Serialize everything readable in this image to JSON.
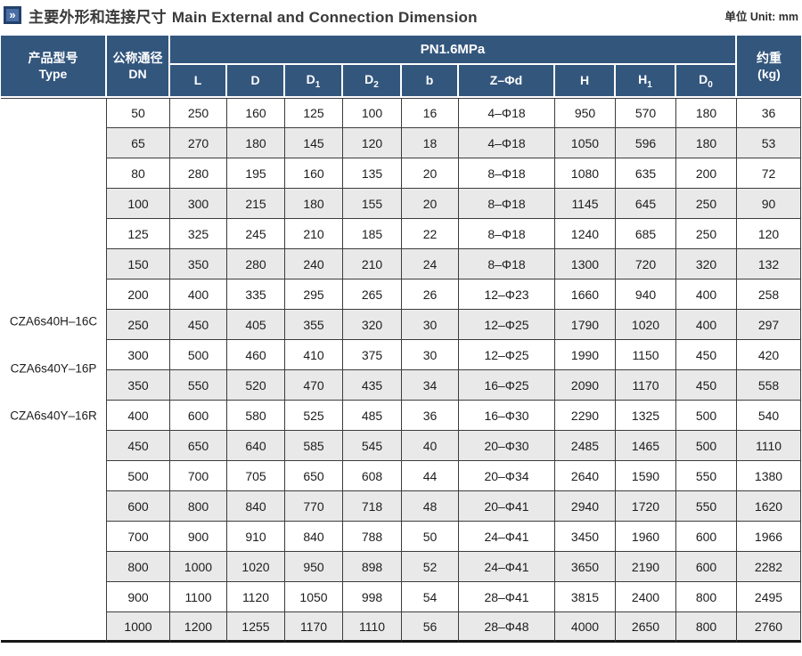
{
  "header": {
    "title_zh": "主要外形和连接尺寸",
    "title_en": "Main External and Connection Dimension",
    "unit": "单位 Unit: mm",
    "icon_glyph": "»"
  },
  "colors": {
    "header_bg": "#33567d",
    "row_alt": "#e9e9e9",
    "grid": "#3c3c3c",
    "icon_bg": "#4a6fa5",
    "icon_border": "#23406b"
  },
  "table": {
    "col_type_zh": "产品型号",
    "col_type_en": "Type",
    "col_dn_zh": "公称通径",
    "col_dn_en": "DN",
    "group_header": "PN1.6MPa",
    "col_weight_zh": "约重",
    "col_weight_en": "(kg)",
    "dim_columns": [
      {
        "key": "l",
        "base": "L",
        "sub": ""
      },
      {
        "key": "d",
        "base": "D",
        "sub": ""
      },
      {
        "key": "d1",
        "base": "D",
        "sub": "1"
      },
      {
        "key": "d2",
        "base": "D",
        "sub": "2"
      },
      {
        "key": "b",
        "base": "b",
        "sub": ""
      },
      {
        "key": "z-phi-d",
        "base": "Z–Φd",
        "sub": ""
      },
      {
        "key": "h",
        "base": "H",
        "sub": ""
      },
      {
        "key": "h1",
        "base": "H",
        "sub": "1"
      },
      {
        "key": "d0",
        "base": "D",
        "sub": "0"
      }
    ],
    "product_types": [
      "CZA6s40H–16C",
      "CZA6s40Y–16P",
      "CZA6s40Y–16R"
    ],
    "rows": [
      [
        50,
        250,
        160,
        125,
        100,
        16,
        "4–Φ18",
        950,
        570,
        180,
        36
      ],
      [
        65,
        270,
        180,
        145,
        120,
        18,
        "4–Φ18",
        1050,
        596,
        180,
        53
      ],
      [
        80,
        280,
        195,
        160,
        135,
        20,
        "8–Φ18",
        1080,
        635,
        200,
        72
      ],
      [
        100,
        300,
        215,
        180,
        155,
        20,
        "8–Φ18",
        1145,
        645,
        250,
        90
      ],
      [
        125,
        325,
        245,
        210,
        185,
        22,
        "8–Φ18",
        1240,
        685,
        250,
        120
      ],
      [
        150,
        350,
        280,
        240,
        210,
        24,
        "8–Φ18",
        1300,
        720,
        320,
        132
      ],
      [
        200,
        400,
        335,
        295,
        265,
        26,
        "12–Φ23",
        1660,
        940,
        400,
        258
      ],
      [
        250,
        450,
        405,
        355,
        320,
        30,
        "12–Φ25",
        1790,
        1020,
        400,
        297
      ],
      [
        300,
        500,
        460,
        410,
        375,
        30,
        "12–Φ25",
        1990,
        1150,
        450,
        420
      ],
      [
        350,
        550,
        520,
        470,
        435,
        34,
        "16–Φ25",
        2090,
        1170,
        450,
        558
      ],
      [
        400,
        600,
        580,
        525,
        485,
        36,
        "16–Φ30",
        2290,
        1325,
        500,
        540
      ],
      [
        450,
        650,
        640,
        585,
        545,
        40,
        "20–Φ30",
        2485,
        1465,
        500,
        1110
      ],
      [
        500,
        700,
        705,
        650,
        608,
        44,
        "20–Φ34",
        2640,
        1590,
        550,
        1380
      ],
      [
        600,
        800,
        840,
        770,
        718,
        48,
        "20–Φ41",
        2940,
        1720,
        550,
        1620
      ],
      [
        700,
        900,
        910,
        840,
        788,
        50,
        "24–Φ41",
        3450,
        1960,
        600,
        1966
      ],
      [
        800,
        1000,
        1020,
        950,
        898,
        52,
        "24–Φ41",
        3650,
        2190,
        600,
        2282
      ],
      [
        900,
        1100,
        1120,
        1050,
        998,
        54,
        "28–Φ41",
        3815,
        2400,
        800,
        2495
      ],
      [
        1000,
        1200,
        1255,
        1170,
        1110,
        56,
        "28–Φ48",
        4000,
        2650,
        800,
        2760
      ]
    ]
  }
}
